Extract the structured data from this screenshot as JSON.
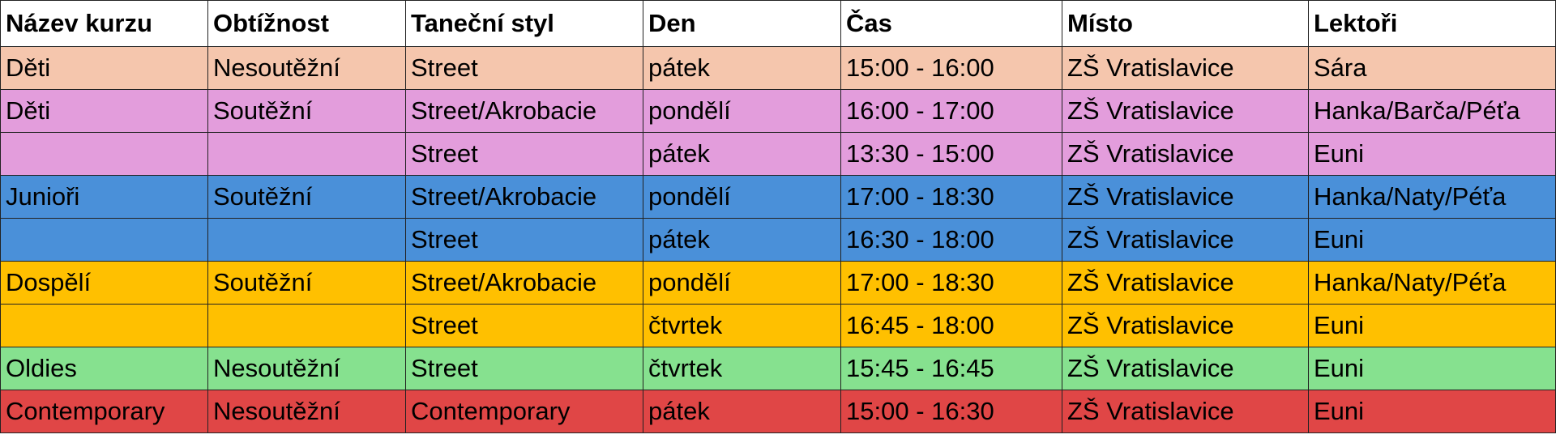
{
  "table": {
    "header": [
      "Název kurzu",
      "Obtížnost",
      "Taneční styl",
      "Den",
      "Čas",
      "Místo",
      "Lektoři"
    ],
    "rows": [
      [
        "Děti",
        "Nesoutěžní",
        "Street",
        "pátek",
        "15:00 - 16:00",
        "ZŠ Vratislavice",
        "Sára"
      ],
      [
        "Děti",
        "Soutěžní",
        "Street/Akrobacie",
        "pondělí",
        "16:00 - 17:00",
        "ZŠ Vratislavice",
        "Hanka/Barča/Péťa"
      ],
      [
        null,
        null,
        "Street",
        "pátek",
        "13:30 - 15:00",
        "ZŠ Vratislavice",
        "Euni"
      ],
      [
        "Junioři",
        "Soutěžní",
        "Street/Akrobacie",
        "pondělí",
        "17:00 - 18:30",
        "ZŠ Vratislavice",
        "Hanka/Naty/Péťa"
      ],
      [
        null,
        null,
        "Street",
        "pátek",
        "16:30 - 18:00",
        "ZŠ Vratislavice",
        "Euni"
      ],
      [
        "Dospělí",
        "Soutěžní",
        "Street/Akrobacie",
        "pondělí",
        "17:00 - 18:30",
        "ZŠ Vratislavice",
        "Hanka/Naty/Péťa"
      ],
      [
        null,
        null,
        "Street",
        "čtvrtek",
        "16:45 - 18:00",
        "ZŠ Vratislavice",
        "Euni"
      ],
      [
        "Oldies",
        "Nesoutěžní",
        "Street",
        "čtvrtek",
        "15:45 - 16:45",
        "ZŠ Vratislavice",
        "Euni"
      ],
      [
        "Contemporary",
        "Nesoutěžní",
        "Contemporary",
        "pátek",
        "15:00 - 16:30",
        "ZŠ Vratislavice",
        "Euni"
      ]
    ]
  }
}
